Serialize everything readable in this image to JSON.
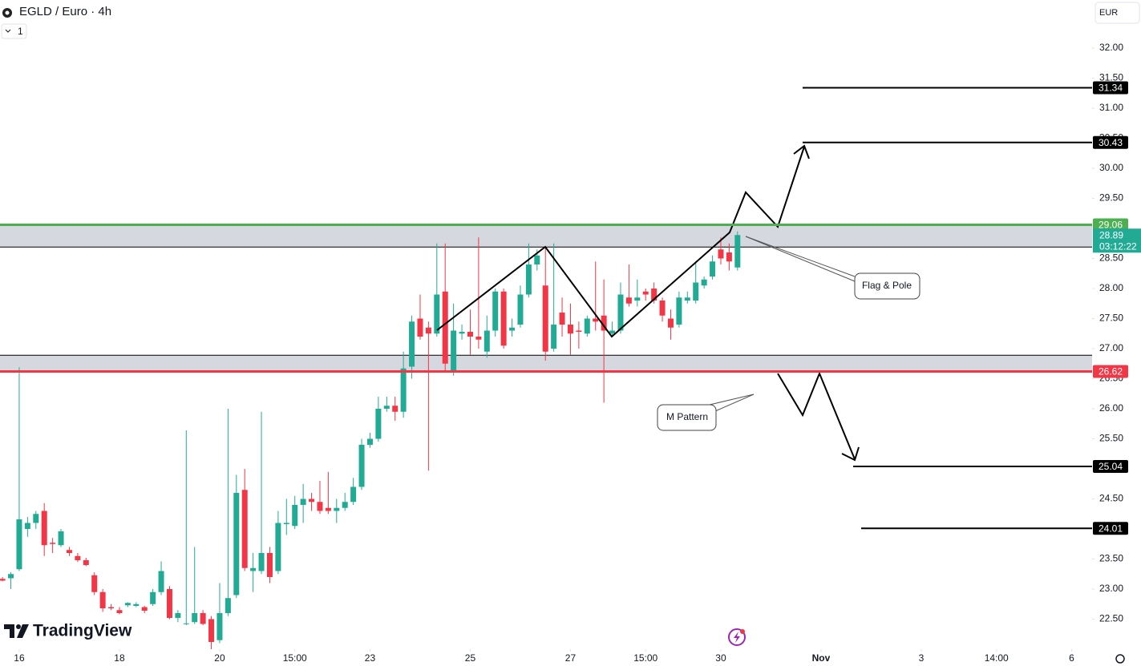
{
  "ui": {
    "collapse_label": "1",
    "currency": "EUR",
    "brand": "TradingView"
  },
  "chart_data": {
    "type": "candlestick",
    "title": "EGLD / Euro · 4h",
    "up_color": "#22ab94",
    "down_color": "#f23645",
    "x": [
      -2,
      -1,
      0,
      1,
      2,
      3,
      4,
      5,
      6,
      7,
      8,
      9,
      10,
      11,
      12,
      13,
      14,
      15,
      16,
      17,
      18,
      19,
      20,
      21,
      22,
      23,
      24,
      25,
      26,
      27,
      28,
      29,
      30,
      31,
      32,
      33,
      34,
      35,
      36,
      37,
      38,
      39,
      40,
      41,
      42,
      43,
      44,
      45,
      46,
      47,
      48,
      49,
      50,
      51,
      52,
      53,
      54,
      55,
      56,
      57,
      58,
      59,
      60,
      61,
      62,
      63,
      64,
      65,
      66,
      67,
      68,
      69,
      70,
      71,
      72,
      73,
      74,
      75,
      76,
      77,
      78,
      79,
      80,
      81,
      82,
      83,
      84,
      85,
      86
    ],
    "open": [
      23.17,
      23.18,
      23.33,
      24.0,
      24.1,
      24.3,
      23.77,
      23.73,
      23.65,
      23.55,
      23.48,
      23.23,
      22.95,
      22.7,
      22.65,
      22.73,
      22.72,
      22.7,
      22.75,
      22.95,
      23.0,
      22.52,
      22.42,
      22.45,
      22.6,
      22.5,
      22.15,
      22.6,
      22.9,
      24.65,
      23.3,
      23.3,
      23.6,
      23.3,
      24.08,
      24.05,
      24.4,
      24.5,
      24.45,
      24.35,
      24.3,
      24.35,
      24.45,
      24.7,
      25.4,
      25.5,
      26.0,
      26.05,
      25.95,
      26.7,
      27.5,
      27.35,
      27.25,
      27.95,
      26.6,
      27.25,
      27.28,
      27.2,
      26.95,
      27.3,
      27.95,
      27.3,
      27.4,
      27.9,
      28.4,
      28.05,
      27.0,
      27.6,
      27.4,
      27.3,
      27.25,
      27.5,
      27.55,
      27.25,
      27.3,
      27.85,
      27.8,
      27.95,
      28.0,
      27.8,
      27.5,
      27.4,
      27.8,
      27.8,
      28.05,
      28.2,
      28.65,
      28.6,
      28.35
    ],
    "high": [
      23.2,
      23.28,
      26.69,
      24.2,
      24.3,
      24.43,
      23.85,
      24.0,
      23.7,
      23.6,
      23.52,
      23.28,
      23.0,
      22.75,
      22.7,
      22.78,
      22.78,
      22.72,
      23.0,
      23.46,
      23.05,
      22.65,
      25.64,
      23.7,
      22.65,
      22.55,
      23.1,
      26.0,
      24.9,
      25.0,
      23.6,
      25.95,
      23.7,
      24.3,
      24.5,
      24.55,
      24.75,
      24.6,
      24.8,
      24.95,
      24.5,
      24.6,
      24.85,
      25.5,
      25.6,
      26.2,
      26.2,
      26.2,
      26.95,
      27.55,
      27.9,
      27.45,
      28.75,
      28.75,
      27.75,
      27.4,
      27.65,
      28.85,
      27.55,
      28.0,
      28.0,
      27.5,
      28.05,
      28.75,
      28.65,
      28.7,
      28.75,
      27.85,
      27.75,
      27.45,
      27.55,
      28.45,
      28.15,
      27.45,
      28.1,
      28.4,
      28.15,
      28.0,
      28.1,
      27.85,
      27.65,
      27.95,
      27.95,
      28.45,
      28.2,
      28.55,
      28.85,
      28.75,
      28.95
    ],
    "low": [
      23.13,
      23.0,
      23.3,
      23.87,
      24.0,
      23.55,
      23.6,
      23.7,
      23.55,
      23.45,
      23.38,
      22.9,
      22.62,
      22.65,
      22.58,
      22.7,
      22.7,
      22.6,
      22.72,
      22.9,
      22.5,
      22.45,
      22.4,
      22.42,
      22.4,
      22.0,
      22.1,
      22.55,
      22.85,
      23.3,
      22.95,
      23.25,
      23.1,
      23.25,
      23.9,
      24.0,
      24.1,
      24.3,
      24.25,
      24.25,
      24.1,
      24.3,
      24.4,
      24.65,
      25.35,
      25.45,
      25.95,
      25.8,
      25.85,
      26.5,
      27.15,
      24.97,
      27.2,
      26.6,
      26.55,
      27.15,
      26.9,
      27.0,
      26.85,
      27.2,
      27.0,
      27.2,
      27.35,
      27.85,
      28.3,
      26.8,
      26.95,
      27.2,
      26.9,
      27.0,
      27.2,
      27.3,
      26.1,
      27.2,
      27.25,
      27.7,
      27.7,
      27.8,
      27.75,
      27.45,
      27.15,
      27.35,
      27.75,
      27.75,
      28.0,
      28.15,
      28.4,
      28.3,
      28.3
    ],
    "close": [
      23.14,
      23.25,
      24.16,
      24.1,
      24.25,
      23.73,
      23.75,
      23.96,
      23.6,
      23.48,
      23.4,
      22.95,
      22.68,
      22.68,
      22.6,
      22.77,
      22.75,
      22.64,
      22.95,
      23.3,
      22.52,
      22.6,
      22.43,
      22.6,
      22.42,
      22.12,
      22.6,
      22.85,
      24.6,
      23.35,
      23.35,
      23.6,
      23.2,
      24.1,
      24.1,
      24.4,
      24.5,
      24.45,
      24.3,
      24.3,
      24.35,
      24.45,
      24.7,
      25.4,
      25.5,
      26.0,
      26.05,
      25.95,
      26.67,
      27.45,
      27.2,
      27.25,
      27.9,
      26.75,
      27.3,
      27.28,
      27.2,
      27.15,
      27.3,
      27.95,
      27.05,
      27.35,
      27.9,
      28.4,
      28.55,
      26.95,
      27.4,
      27.4,
      27.25,
      27.28,
      27.5,
      27.45,
      27.3,
      27.3,
      27.9,
      27.75,
      27.85,
      27.9,
      27.8,
      27.55,
      27.35,
      27.85,
      27.85,
      28.1,
      28.15,
      28.45,
      28.5,
      28.45,
      28.89
    ],
    "xlim": [
      -2.3,
      128.45
    ],
    "xticks": [
      {
        "value": 0,
        "label": "16"
      },
      {
        "value": 12,
        "label": "18"
      },
      {
        "value": 24,
        "label": "20"
      },
      {
        "value": 33,
        "label": "15:00"
      },
      {
        "value": 42,
        "label": "23"
      },
      {
        "value": 54,
        "label": "25"
      },
      {
        "value": 66,
        "label": "27"
      },
      {
        "value": 75,
        "label": "15:00"
      },
      {
        "value": 84,
        "label": "30"
      },
      {
        "value": 96,
        "label": "Nov"
      },
      {
        "value": 108,
        "label": "3"
      },
      {
        "value": 117,
        "label": "14:00"
      },
      {
        "value": 126,
        "label": "6"
      }
    ],
    "ylim": [
      22.0,
      32.8
    ],
    "yticks": [
      {
        "value": 32,
        "label": "32.00"
      },
      {
        "value": 31.5,
        "label": "31.50"
      },
      {
        "value": 31,
        "label": "31.00"
      },
      {
        "value": 30.5,
        "label": "30.50"
      },
      {
        "value": 30,
        "label": "30.00"
      },
      {
        "value": 29.5,
        "label": "29.50"
      },
      {
        "value": 29,
        "label": "29.00"
      },
      {
        "value": 28.5,
        "label": "28.50"
      },
      {
        "value": 28,
        "label": "28.00"
      },
      {
        "value": 27.5,
        "label": "27.50"
      },
      {
        "value": 27,
        "label": "27.00"
      },
      {
        "value": 26.5,
        "label": "26.50"
      },
      {
        "value": 26,
        "label": "26.00"
      },
      {
        "value": 25.5,
        "label": "25.50"
      },
      {
        "value": 25,
        "label": "25.00"
      },
      {
        "value": 24.5,
        "label": "24.50"
      },
      {
        "value": 24,
        "label": "24.00"
      },
      {
        "value": 23.5,
        "label": "23.50"
      },
      {
        "value": 23,
        "label": "23.00"
      },
      {
        "value": 22.5,
        "label": "22.50"
      }
    ],
    "zones": [
      {
        "top": 29.06,
        "bottom": 28.69
      },
      {
        "top": 26.89,
        "bottom": 26.62
      }
    ],
    "levels": [
      {
        "value": 31.34,
        "color": "#000000"
      },
      {
        "value": 30.43,
        "color": "#000000"
      },
      {
        "value": 29.06,
        "color": "#4caf50"
      },
      {
        "value": 26.62,
        "color": "#f23645"
      },
      {
        "value": 25.04,
        "color": "#000000"
      },
      {
        "value": 24.01,
        "color": "#000000"
      }
    ],
    "last_price": 28.89,
    "countdown": "03:12:22",
    "annotations": [
      "Flag & Pole",
      "M Pattern"
    ]
  }
}
